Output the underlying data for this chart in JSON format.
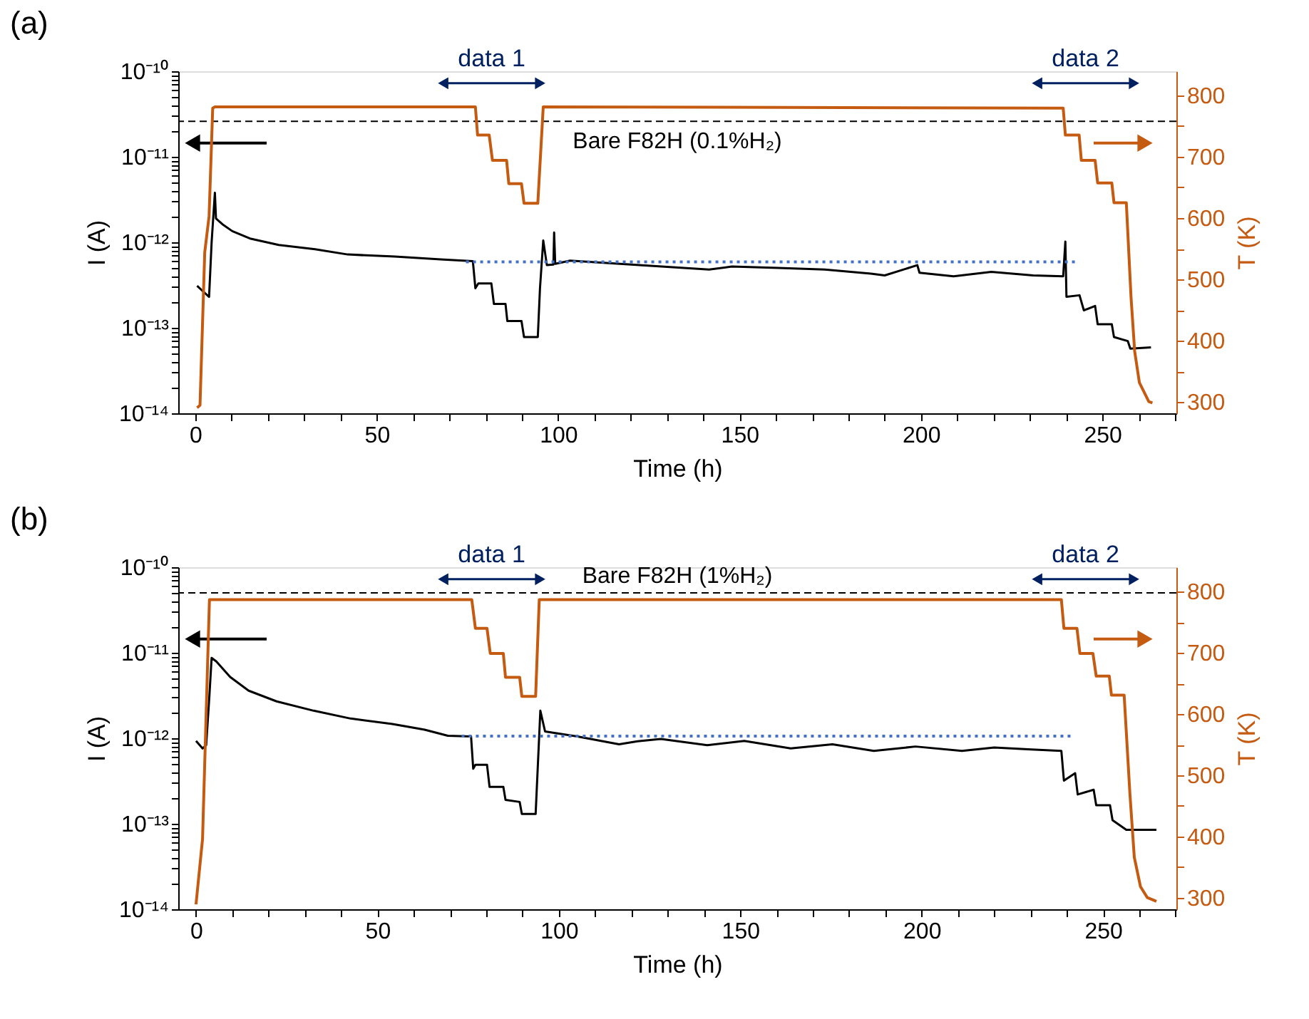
{
  "chart_data": [
    {
      "type": "line",
      "title": "(a)",
      "xlabel": "Time (h)",
      "ylabel": "I (A)",
      "y2label": "T (K)",
      "log": "y",
      "xlim": [
        -4.7,
        270.4
      ],
      "ylim": [
        1e-14,
        1e-10
      ],
      "y2lim": [
        282,
        839
      ],
      "xticks": [
        0,
        {
          "value": 10,
          "label": null
        },
        {
          "value": 20,
          "label": null
        },
        {
          "value": 30,
          "label": null
        },
        {
          "value": 40,
          "label": null
        },
        50,
        {
          "value": 60,
          "label": null
        },
        {
          "value": 70,
          "label": null
        },
        {
          "value": 80,
          "label": null
        },
        {
          "value": 90,
          "label": null
        },
        100,
        {
          "value": 110,
          "label": null
        },
        {
          "value": 120,
          "label": null
        },
        {
          "value": 130,
          "label": null
        },
        {
          "value": 140,
          "label": null
        },
        150,
        {
          "value": 160,
          "label": null
        },
        {
          "value": 170,
          "label": null
        },
        {
          "value": 180,
          "label": null
        },
        {
          "value": 190,
          "label": null
        },
        200,
        {
          "value": 210,
          "label": null
        },
        {
          "value": 220,
          "label": null
        },
        {
          "value": 230,
          "label": null
        },
        {
          "value": 240,
          "label": null
        },
        250,
        {
          "value": 260,
          "label": null
        },
        {
          "value": 270,
          "label": null
        }
      ],
      "yticks": [
        {
          "value": 1e-14,
          "label": "10⁻¹⁴"
        },
        {
          "value": 2e-14,
          "label": null
        },
        {
          "value": 3e-14,
          "label": null
        },
        {
          "value": 4e-14,
          "label": null
        },
        {
          "value": 5e-14,
          "label": null
        },
        {
          "value": 6e-14,
          "label": null
        },
        {
          "value": 7e-14,
          "label": null
        },
        {
          "value": 8e-14,
          "label": null
        },
        {
          "value": 9e-14,
          "label": null
        },
        {
          "value": 1e-13,
          "label": "10⁻¹³"
        },
        {
          "value": 2e-13,
          "label": null
        },
        {
          "value": 3e-13,
          "label": null
        },
        {
          "value": 4e-13,
          "label": null
        },
        {
          "value": 5e-13,
          "label": null
        },
        {
          "value": 6e-13,
          "label": null
        },
        {
          "value": 7e-13,
          "label": null
        },
        {
          "value": 8e-13,
          "label": null
        },
        {
          "value": 9e-13,
          "label": null
        },
        {
          "value": 1e-12,
          "label": "10⁻¹²"
        },
        {
          "value": 2e-12,
          "label": null
        },
        {
          "value": 3e-12,
          "label": null
        },
        {
          "value": 4e-12,
          "label": null
        },
        {
          "value": 5e-12,
          "label": null
        },
        {
          "value": 6e-12,
          "label": null
        },
        {
          "value": 7e-12,
          "label": null
        },
        {
          "value": 8e-12,
          "label": null
        },
        {
          "value": 9e-12,
          "label": null
        },
        {
          "value": 1e-11,
          "label": "10⁻¹¹"
        },
        {
          "value": 2e-11,
          "label": null
        },
        {
          "value": 3e-11,
          "label": null
        },
        {
          "value": 4e-11,
          "label": null
        },
        {
          "value": 5e-11,
          "label": null
        },
        {
          "value": 6e-11,
          "label": null
        },
        {
          "value": 7e-11,
          "label": null
        },
        {
          "value": 8e-11,
          "label": null
        },
        {
          "value": 9e-11,
          "label": null
        },
        {
          "value": 1e-10,
          "label": "10⁻¹⁰"
        }
      ],
      "y2ticks": [
        300,
        {
          "value": 350,
          "label": null
        },
        400,
        {
          "value": 450,
          "label": null
        },
        500,
        {
          "value": 550,
          "label": null
        },
        600,
        {
          "value": 650,
          "label": null
        },
        700,
        {
          "value": 750,
          "label": null
        },
        800
      ],
      "series": [
        {
          "color": "#000000",
          "x": [
            0.5,
            2,
            3.8,
            4.5,
            5.4,
            5.7,
            7.7,
            10.2,
            15.3,
            23,
            33,
            42,
            55,
            67.6,
            76.5,
            77.2,
            78,
            81.6,
            82.3,
            85.5,
            86,
            89.9,
            90.6,
            94.4,
            95,
            95.9,
            96.9,
            98.7,
            98.9,
            99.2,
            103.3,
            122.4,
            141.6,
            147.9,
            160.7,
            173.5,
            186.2,
            190,
            199,
            199.6,
            209,
            219.4,
            230.9,
            239.2,
            239.8,
            240.1,
            243.7,
            244.9,
            248,
            248.7,
            252.6,
            253.2,
            257,
            257.7,
            263.4
          ],
          "values": [
            3.1e-13,
            2.7e-13,
            2.3e-13,
            1e-12,
            3.8e-12,
            1.9e-12,
            1.6e-12,
            1.35e-12,
            1.1e-12,
            9.3e-13,
            8.3e-13,
            7.2e-13,
            6.8e-13,
            6.3e-13,
            6e-13,
            2.9e-13,
            3.3e-13,
            3.3e-13,
            1.9e-13,
            1.9e-13,
            1.2e-13,
            1.2e-13,
            7.8e-14,
            7.8e-14,
            2.9e-13,
            1.05e-12,
            5.4e-13,
            5.5e-13,
            1.3e-12,
            5.6e-13,
            6.1e-13,
            5.4e-13,
            4.8e-13,
            5.2e-13,
            5e-13,
            4.8e-13,
            4.3e-13,
            4.1e-13,
            5.4e-13,
            4.4e-13,
            4e-13,
            4.5e-13,
            4.1e-13,
            4e-13,
            1.02e-12,
            2.3e-13,
            2.4e-13,
            1.6e-13,
            1.8e-13,
            1.1e-13,
            1.1e-13,
            7.8e-14,
            7e-14,
            5.7e-14,
            5.9e-14
          ]
        },
        {
          "color": "#4472c4",
          "line_style": "dotted",
          "x": [
            74.6,
            243
          ],
          "values": [
            5.9e-13,
            5.9e-13
          ]
        },
        {
          "color": "#c55a11",
          "axis": "y2",
          "x": [
            0.5,
            1.3,
            2.6,
            3.8,
            4.8,
            5.4,
            77.2,
            77.8,
            81,
            81.9,
            85.8,
            86.4,
            89.9,
            90.6,
            94.4,
            95.9,
            239.2,
            239.8,
            243.6,
            244.2,
            248,
            248.7,
            252.6,
            253.2,
            256.6,
            257.9,
            258.9,
            260.2,
            262.8,
            263.8
          ],
          "values": [
            291,
            295,
            544,
            603,
            779,
            781,
            781,
            735,
            735,
            694,
            694,
            656,
            656,
            624,
            624,
            781,
            779,
            735,
            735,
            694,
            694,
            657,
            657,
            625,
            625,
            471,
            383,
            332,
            301,
            299
          ]
        }
      ],
      "ref_lines": [
        {
          "axis": "y",
          "value": 2.6e-11,
          "label": "Bare F82H (0.1%H₂)",
          "color": "#000000",
          "line_style": "dashed"
        }
      ],
      "annotations": [
        "data 1",
        "data 2"
      ]
    },
    {
      "type": "line",
      "title": "(b)",
      "xlabel": "Time (h)",
      "ylabel": "I (A)",
      "y2label": "T (K)",
      "log": "y",
      "xlim": [
        -4.9,
        270.2
      ],
      "ylim": [
        1e-14,
        1e-10
      ],
      "y2lim": [
        281,
        840
      ],
      "xticks": [
        0,
        {
          "value": 10,
          "label": null
        },
        {
          "value": 20,
          "label": null
        },
        {
          "value": 30,
          "label": null
        },
        {
          "value": 40,
          "label": null
        },
        50,
        {
          "value": 60,
          "label": null
        },
        {
          "value": 70,
          "label": null
        },
        {
          "value": 80,
          "label": null
        },
        {
          "value": 90,
          "label": null
        },
        100,
        {
          "value": 110,
          "label": null
        },
        {
          "value": 120,
          "label": null
        },
        {
          "value": 130,
          "label": null
        },
        {
          "value": 140,
          "label": null
        },
        150,
        {
          "value": 160,
          "label": null
        },
        {
          "value": 170,
          "label": null
        },
        {
          "value": 180,
          "label": null
        },
        {
          "value": 190,
          "label": null
        },
        200,
        {
          "value": 210,
          "label": null
        },
        {
          "value": 220,
          "label": null
        },
        {
          "value": 230,
          "label": null
        },
        {
          "value": 240,
          "label": null
        },
        250,
        {
          "value": 260,
          "label": null
        },
        {
          "value": 270,
          "label": null
        }
      ],
      "yticks": [
        {
          "value": 1e-14,
          "label": "10⁻¹⁴"
        },
        {
          "value": 2e-14,
          "label": null
        },
        {
          "value": 3e-14,
          "label": null
        },
        {
          "value": 4e-14,
          "label": null
        },
        {
          "value": 5e-14,
          "label": null
        },
        {
          "value": 6e-14,
          "label": null
        },
        {
          "value": 7e-14,
          "label": null
        },
        {
          "value": 8e-14,
          "label": null
        },
        {
          "value": 9e-14,
          "label": null
        },
        {
          "value": 1e-13,
          "label": "10⁻¹³"
        },
        {
          "value": 2e-13,
          "label": null
        },
        {
          "value": 3e-13,
          "label": null
        },
        {
          "value": 4e-13,
          "label": null
        },
        {
          "value": 5e-13,
          "label": null
        },
        {
          "value": 6e-13,
          "label": null
        },
        {
          "value": 7e-13,
          "label": null
        },
        {
          "value": 8e-13,
          "label": null
        },
        {
          "value": 9e-13,
          "label": null
        },
        {
          "value": 1e-12,
          "label": "10⁻¹²"
        },
        {
          "value": 2e-12,
          "label": null
        },
        {
          "value": 3e-12,
          "label": null
        },
        {
          "value": 4e-12,
          "label": null
        },
        {
          "value": 5e-12,
          "label": null
        },
        {
          "value": 6e-12,
          "label": null
        },
        {
          "value": 7e-12,
          "label": null
        },
        {
          "value": 8e-12,
          "label": null
        },
        {
          "value": 9e-12,
          "label": null
        },
        {
          "value": 1e-11,
          "label": "10⁻¹¹"
        },
        {
          "value": 2e-11,
          "label": null
        },
        {
          "value": 3e-11,
          "label": null
        },
        {
          "value": 4e-11,
          "label": null
        },
        {
          "value": 5e-11,
          "label": null
        },
        {
          "value": 6e-11,
          "label": null
        },
        {
          "value": 7e-11,
          "label": null
        },
        {
          "value": 8e-11,
          "label": null
        },
        {
          "value": 9e-11,
          "label": null
        },
        {
          "value": 1e-10,
          "label": "10⁻¹⁰"
        }
      ],
      "y2ticks": [
        300,
        {
          "value": 350,
          "label": null
        },
        400,
        {
          "value": 450,
          "label": null
        },
        500,
        {
          "value": 550,
          "label": null
        },
        600,
        {
          "value": 650,
          "label": null
        },
        700,
        {
          "value": 750,
          "label": null
        },
        800
      ],
      "series": [
        {
          "color": "#000000",
          "x": [
            0,
            1.8,
            2.8,
            3.7,
            4.3,
            5.6,
            9.4,
            14.5,
            22.2,
            32.4,
            42.6,
            54.1,
            63,
            69.4,
            75.8,
            76.4,
            77,
            80.2,
            80.9,
            84.7,
            85.3,
            89.2,
            89.8,
            93.6,
            94.9,
            96.2,
            105.1,
            116.6,
            121.7,
            128.1,
            140.9,
            151.1,
            163.9,
            175.4,
            186.8,
            198.3,
            211.1,
            220,
            230.2,
            238.5,
            239.2,
            242.3,
            243,
            247.4,
            248.1,
            251.9,
            252.6,
            256.4,
            264.7
          ],
          "values": [
            9.3e-13,
            7.6e-13,
            8.3e-13,
            3.2e-12,
            8.7e-12,
            7.9e-12,
            5.2e-12,
            3.6e-12,
            2.7e-12,
            2.1e-12,
            1.7e-12,
            1.47e-12,
            1.26e-12,
            1.07e-12,
            1.05e-12,
            4.4e-13,
            4.9e-13,
            4.9e-13,
            2.7e-13,
            2.7e-13,
            1.9e-13,
            1.8e-13,
            1.3e-13,
            1.3e-13,
            2.1e-12,
            1.2e-12,
            1.05e-12,
            8.5e-13,
            9.2e-13,
            9.8e-13,
            8.3e-13,
            9.3e-13,
            7.6e-13,
            8.5e-13,
            7.1e-13,
            8e-13,
            7.1e-13,
            7.8e-13,
            7.4e-13,
            7.1e-13,
            3.2e-13,
            3.9e-13,
            2.2e-13,
            2.5e-13,
            1.65e-13,
            1.65e-13,
            1.1e-13,
            8.5e-14,
            8.5e-14
          ]
        },
        {
          "color": "#4472c4",
          "line_style": "dotted",
          "x": [
            73.2,
            242
          ],
          "values": [
            1.06e-12,
            1.06e-12
          ]
        },
        {
          "color": "#c55a11",
          "axis": "y2",
          "x": [
            0,
            1.8,
            3.7,
            76,
            77,
            80.2,
            81.1,
            84.7,
            85.3,
            89.2,
            89.8,
            93.6,
            94.6,
            238.5,
            239.2,
            242.8,
            243.6,
            247.2,
            248.1,
            251.7,
            252.3,
            255.8,
            257.4,
            258.6,
            260.3,
            262.2,
            264.7
          ],
          "values": [
            289,
            396,
            787,
            787,
            740,
            740,
            699,
            699,
            660,
            660,
            629,
            629,
            787,
            787,
            740,
            740,
            699,
            699,
            662,
            662,
            631,
            631,
            469,
            366,
            318,
            300,
            294
          ]
        }
      ],
      "ref_lines": [
        {
          "axis": "y",
          "value": 5e-11,
          "label": "Bare F82H (1%H₂)",
          "color": "#000000",
          "line_style": "dashed"
        }
      ],
      "annotations": [
        "data 1",
        "data 2"
      ]
    }
  ]
}
